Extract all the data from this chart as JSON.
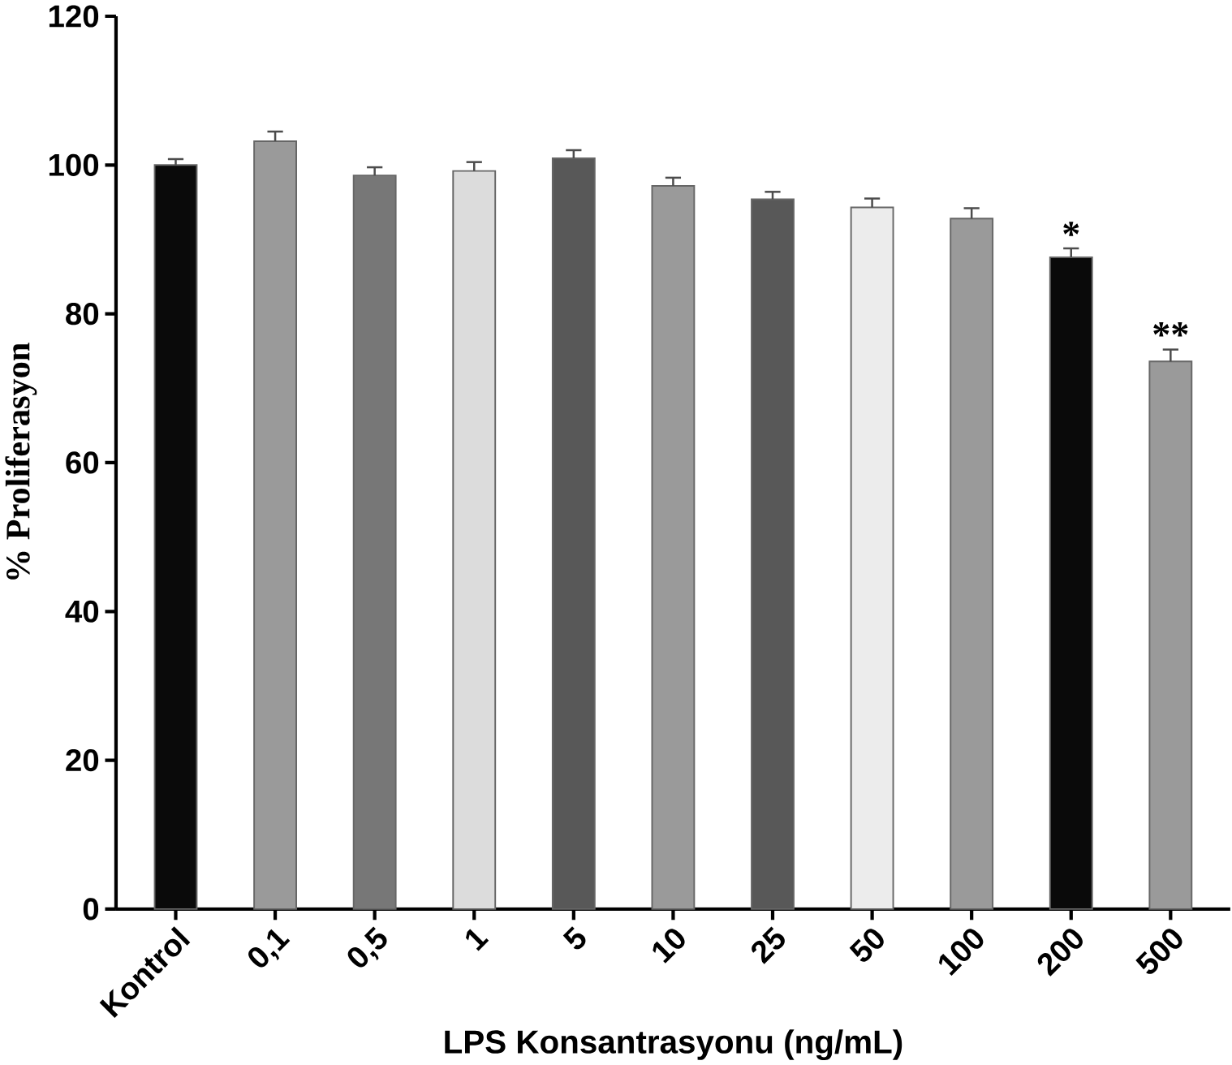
{
  "chart_data": {
    "type": "bar",
    "xlabel": "LPS Konsantrasyonu (ng/mL)",
    "ylabel": "% Proliferasyon",
    "categories": [
      "Kontrol",
      "0,1",
      "0,5",
      "1",
      "5",
      "10",
      "25",
      "50",
      "100",
      "200",
      "500"
    ],
    "values": [
      100,
      103.2,
      98.6,
      99.2,
      100.9,
      97.2,
      95.4,
      94.3,
      92.8,
      87.6,
      73.6
    ],
    "errors": [
      0.8,
      1.3,
      1.1,
      1.2,
      1.1,
      1.1,
      1.0,
      1.2,
      1.4,
      1.2,
      1.6
    ],
    "colors": [
      "#0a0a0a",
      "#9a9a9a",
      "#777777",
      "#dcdcdc",
      "#585858",
      "#9a9a9a",
      "#585858",
      "#ececec",
      "#9a9a9a",
      "#0a0a0a",
      "#9a9a9a"
    ],
    "ylim": [
      0,
      120
    ],
    "yticks": [
      0,
      20,
      40,
      60,
      80,
      100,
      120
    ],
    "annotations": [
      {
        "text": "*",
        "x": "200",
        "y": 89
      },
      {
        "text": "**",
        "x": "500",
        "y": 75.5
      }
    ]
  }
}
